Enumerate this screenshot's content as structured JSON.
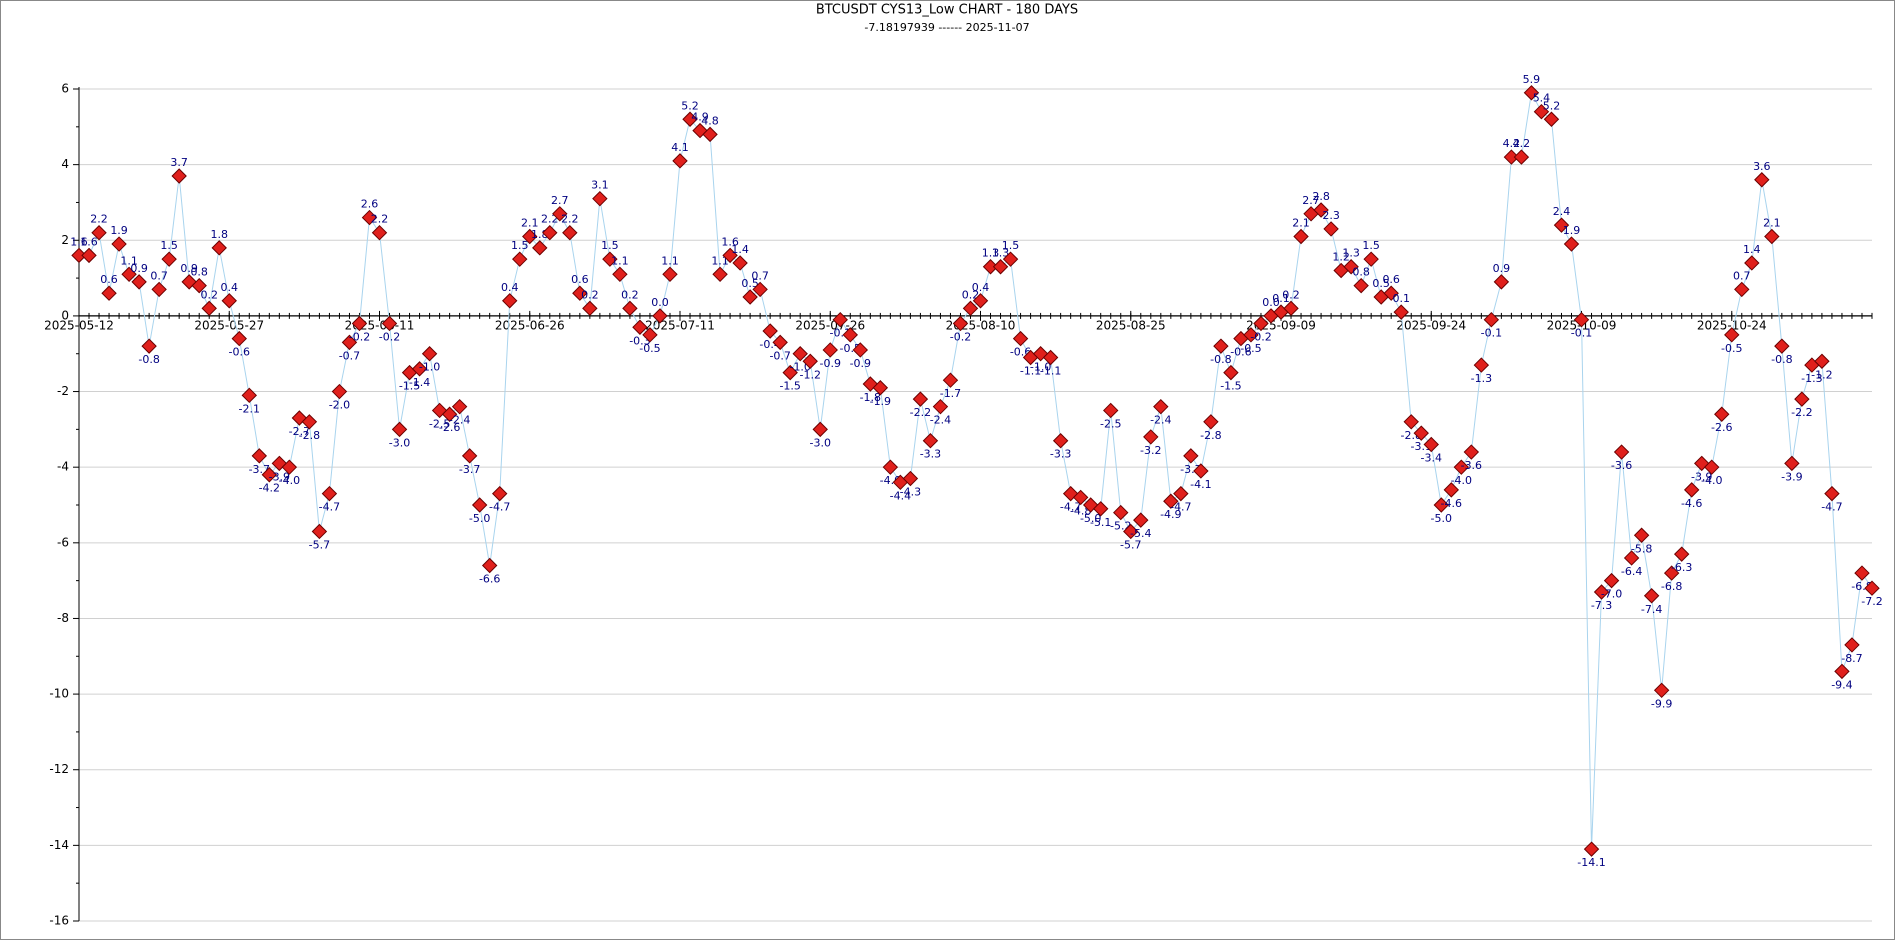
{
  "chart_data": {
    "type": "line",
    "title": "BTCUSDT  CYS13_Low CHART - 180 DAYS",
    "subtitle": "-7.18197939 ------ 2025-11-07",
    "x": [
      "2025-05-12",
      "2025-05-13",
      "2025-05-14",
      "2025-05-15",
      "2025-05-16",
      "2025-05-17",
      "2025-05-18",
      "2025-05-19",
      "2025-05-20",
      "2025-05-21",
      "2025-05-22",
      "2025-05-23",
      "2025-05-24",
      "2025-05-25",
      "2025-05-26",
      "2025-05-27",
      "2025-05-28",
      "2025-05-29",
      "2025-05-30",
      "2025-05-31",
      "2025-06-01",
      "2025-06-02",
      "2025-06-03",
      "2025-06-04",
      "2025-06-05",
      "2025-06-06",
      "2025-06-07",
      "2025-06-08",
      "2025-06-09",
      "2025-06-10",
      "2025-06-11",
      "2025-06-12",
      "2025-06-13",
      "2025-06-14",
      "2025-06-15",
      "2025-06-16",
      "2025-06-17",
      "2025-06-18",
      "2025-06-19",
      "2025-06-20",
      "2025-06-21",
      "2025-06-22",
      "2025-06-23",
      "2025-06-24",
      "2025-06-25",
      "2025-06-26",
      "2025-06-27",
      "2025-06-28",
      "2025-06-29",
      "2025-06-30",
      "2025-07-01",
      "2025-07-02",
      "2025-07-03",
      "2025-07-04",
      "2025-07-05",
      "2025-07-06",
      "2025-07-07",
      "2025-07-08",
      "2025-07-09",
      "2025-07-10",
      "2025-07-11",
      "2025-07-12",
      "2025-07-13",
      "2025-07-14",
      "2025-07-15",
      "2025-07-16",
      "2025-07-17",
      "2025-07-18",
      "2025-07-19",
      "2025-07-20",
      "2025-07-21",
      "2025-07-22",
      "2025-07-23",
      "2025-07-24",
      "2025-07-25",
      "2025-07-26",
      "2025-07-27",
      "2025-07-28",
      "2025-07-29",
      "2025-07-30",
      "2025-07-31",
      "2025-08-01",
      "2025-08-02",
      "2025-08-03",
      "2025-08-04",
      "2025-08-05",
      "2025-08-06",
      "2025-08-07",
      "2025-08-08",
      "2025-08-09",
      "2025-08-10",
      "2025-08-11",
      "2025-08-12",
      "2025-08-13",
      "2025-08-14",
      "2025-08-15",
      "2025-08-16",
      "2025-08-17",
      "2025-08-18",
      "2025-08-19",
      "2025-08-20",
      "2025-08-21",
      "2025-08-22",
      "2025-08-23",
      "2025-08-24",
      "2025-08-25",
      "2025-08-26",
      "2025-08-27",
      "2025-08-28",
      "2025-08-29",
      "2025-08-30",
      "2025-08-31",
      "2025-09-01",
      "2025-09-02",
      "2025-09-03",
      "2025-09-04",
      "2025-09-05",
      "2025-09-06",
      "2025-09-07",
      "2025-09-08",
      "2025-09-09",
      "2025-09-10",
      "2025-09-11",
      "2025-09-12",
      "2025-09-13",
      "2025-09-14",
      "2025-09-15",
      "2025-09-16",
      "2025-09-17",
      "2025-09-18",
      "2025-09-19",
      "2025-09-20",
      "2025-09-21",
      "2025-09-22",
      "2025-09-23",
      "2025-09-24",
      "2025-09-25",
      "2025-09-26",
      "2025-09-27",
      "2025-09-28",
      "2025-09-29",
      "2025-09-30",
      "2025-10-01",
      "2025-10-02",
      "2025-10-03",
      "2025-10-04",
      "2025-10-05",
      "2025-10-06",
      "2025-10-07",
      "2025-10-08",
      "2025-10-09",
      "2025-10-10",
      "2025-10-11",
      "2025-10-12",
      "2025-10-13",
      "2025-10-14",
      "2025-10-15",
      "2025-10-16",
      "2025-10-17",
      "2025-10-18",
      "2025-10-19",
      "2025-10-20",
      "2025-10-21",
      "2025-10-22",
      "2025-10-23",
      "2025-10-24",
      "2025-10-25",
      "2025-10-26",
      "2025-10-27",
      "2025-10-28",
      "2025-10-29",
      "2025-10-30",
      "2025-10-31",
      "2025-11-01",
      "2025-11-02",
      "2025-11-03",
      "2025-11-04",
      "2025-11-05",
      "2025-11-06",
      "2025-11-07"
    ],
    "values": [
      1.6,
      1.6,
      2.2,
      0.6,
      1.9,
      1.1,
      0.9,
      -0.8,
      0.7,
      1.5,
      3.7,
      0.9,
      0.8,
      0.2,
      1.8,
      0.4,
      -0.6,
      -2.1,
      -3.7,
      -4.2,
      -3.9,
      -4.0,
      -2.7,
      -2.8,
      -5.7,
      -4.7,
      -2.0,
      -0.7,
      -0.2,
      2.6,
      2.2,
      -0.2,
      -3.0,
      -1.5,
      -1.4,
      -1.0,
      -2.5,
      -2.6,
      -2.4,
      -3.7,
      -5.0,
      -6.6,
      -4.7,
      0.4,
      1.5,
      2.1,
      1.8,
      2.2,
      2.7,
      2.2,
      0.6,
      0.2,
      3.1,
      1.5,
      1.1,
      0.2,
      -0.3,
      -0.5,
      0.0,
      1.1,
      4.1,
      5.2,
      4.9,
      4.8,
      1.1,
      1.6,
      1.4,
      0.5,
      0.7,
      -0.4,
      -0.7,
      -1.5,
      -1.0,
      -1.2,
      -3.0,
      -0.9,
      -0.1,
      -0.5,
      -0.9,
      -1.8,
      -1.9,
      -4.0,
      -4.4,
      -4.3,
      -2.2,
      -3.3,
      -2.4,
      -1.7,
      -0.2,
      0.2,
      0.4,
      1.3,
      1.3,
      1.5,
      -0.6,
      -1.1,
      -1.0,
      -1.1,
      -3.3,
      -4.7,
      -4.8,
      -5.0,
      -5.1,
      -2.5,
      -5.2,
      -5.7,
      -5.4,
      -3.2,
      -2.4,
      -4.9,
      -4.7,
      -3.7,
      -4.1,
      -2.8,
      -0.8,
      -1.5,
      -0.6,
      -0.5,
      -0.2,
      0.0,
      0.1,
      0.2,
      2.1,
      2.7,
      2.8,
      2.3,
      1.2,
      1.3,
      0.8,
      1.5,
      0.5,
      0.6,
      0.1,
      -2.8,
      -3.1,
      -3.4,
      -5.0,
      -4.6,
      -4.0,
      -3.6,
      -1.3,
      -0.1,
      0.9,
      4.2,
      4.2,
      5.9,
      5.4,
      5.2,
      2.4,
      1.9,
      -0.1,
      -14.1,
      -7.3,
      -7.0,
      -3.6,
      -6.4,
      -5.8,
      -7.4,
      -9.9,
      -6.8,
      -6.3,
      -4.6,
      -3.9,
      -4.0,
      -2.6,
      -0.5,
      0.7,
      1.4,
      3.6,
      2.1,
      -0.8,
      -3.9,
      -2.2,
      -1.3,
      -1.2,
      -4.7,
      -9.4,
      -8.7,
      -6.8,
      -7.2
    ],
    "value_labels": [
      "1.6",
      "1.6",
      "2.2",
      "0.6",
      "1.9",
      "1.1",
      "0.9",
      "-0.8",
      "0.7",
      "1.5",
      "3.7",
      "0.9",
      "0.8",
      "0.2",
      "1.8",
      "0.4",
      "-0.6",
      "-2.1",
      "-3.7",
      "-4.2",
      "-3.9",
      "-4.0",
      "-2.7",
      "-2.8",
      "-5.7",
      "-4.7",
      "-2.0",
      "-0.7",
      "-0.2",
      "2.6",
      "2.2",
      "-0.2",
      "-3.0",
      "-1.5",
      "-1.4",
      "-1.0",
      "-2.5",
      "-2.6",
      "-2.4",
      "-3.7",
      "-5.0",
      "-6.6",
      "-4.7",
      "0.4",
      "1.5",
      "2.1",
      "1.8",
      "2.2",
      "2.7",
      "2.2",
      "0.6",
      "0.2",
      "3.1",
      "1.5",
      "1.1",
      "0.2",
      "-0.3",
      "-0.5",
      "0.0",
      "1.1",
      "4.1",
      "5.2",
      "4.9",
      "4.8",
      "1.1",
      "1.6",
      "1.4",
      "0.5",
      "0.7",
      "-0.4",
      "-0.7",
      "-1.5",
      "-1.0",
      "-1.2",
      "-3.0",
      "-0.9",
      "-0.1",
      "-0.5",
      "-0.9",
      "-1.8",
      "-1.9",
      "-4.0",
      "-4.4",
      "-4.3",
      "-2.2",
      "-3.3",
      "-2.4",
      "-1.7",
      "-0.2",
      "0.2",
      "0.4",
      "1.3",
      "1.3",
      "1.5",
      "-0.6",
      "-1.1",
      "-1.0",
      "-1.1",
      "-3.3",
      "-4.7",
      "-4.8",
      "-5.0",
      "-5.1",
      "-2.5",
      "-5.2",
      "-5.7",
      "-5.4",
      "-3.2",
      "-2.4",
      "-4.9",
      "-4.7",
      "-3.7",
      "-4.1",
      "-2.8",
      "-0.8",
      "-1.5",
      "-0.6",
      "-0.5",
      "-0.2",
      "0.0",
      "0.1",
      "0.2",
      "2.1",
      "2.7",
      "2.8",
      "2.3",
      "1.2",
      "1.3",
      "0.8",
      "1.5",
      "0.5",
      "0.6",
      "0.1",
      "-2.8",
      "-3.1",
      "-3.4",
      "-5.0",
      "-4.6",
      "-4.0",
      "-3.6",
      "-1.3",
      "-0.1",
      "0.9",
      "4.2",
      "4.2",
      "5.9",
      "5.4",
      "5.2",
      "2.4",
      "1.9",
      "-0.1",
      "-14.1",
      "-7.3",
      "-7.0",
      "-3.6",
      "-6.4",
      "-5.8",
      "-7.4",
      "-9.9",
      "-6.8",
      "-6.3",
      "-4.6",
      "-3.9",
      "-4.0",
      "-2.6",
      "-0.5",
      "0.7",
      "1.4",
      "3.6",
      "2.1",
      "-0.8",
      "-3.9",
      "-2.2",
      "-1.3",
      "-1.2",
      "-4.7",
      "-9.4",
      "-8.7",
      "-6.8",
      "-7.2"
    ],
    "line_color": "#a9d4ee",
    "marker_color": "#e0201c",
    "label_color": "#000080",
    "xlim": [
      "2025-05-12",
      "2025-11-07"
    ],
    "xticks": [
      "2025-05-12",
      "2025-05-27",
      "2025-06-11",
      "2025-06-26",
      "2025-07-11",
      "2025-07-26",
      "2025-08-10",
      "2025-08-25",
      "2025-09-09",
      "2025-09-24",
      "2025-10-09",
      "2025-10-24"
    ],
    "ylim": [
      -16,
      6
    ],
    "yticks": [
      -16,
      -14,
      -12,
      -10,
      -8,
      -6,
      -4,
      -2,
      0,
      2,
      4,
      6
    ],
    "grid": true
  }
}
